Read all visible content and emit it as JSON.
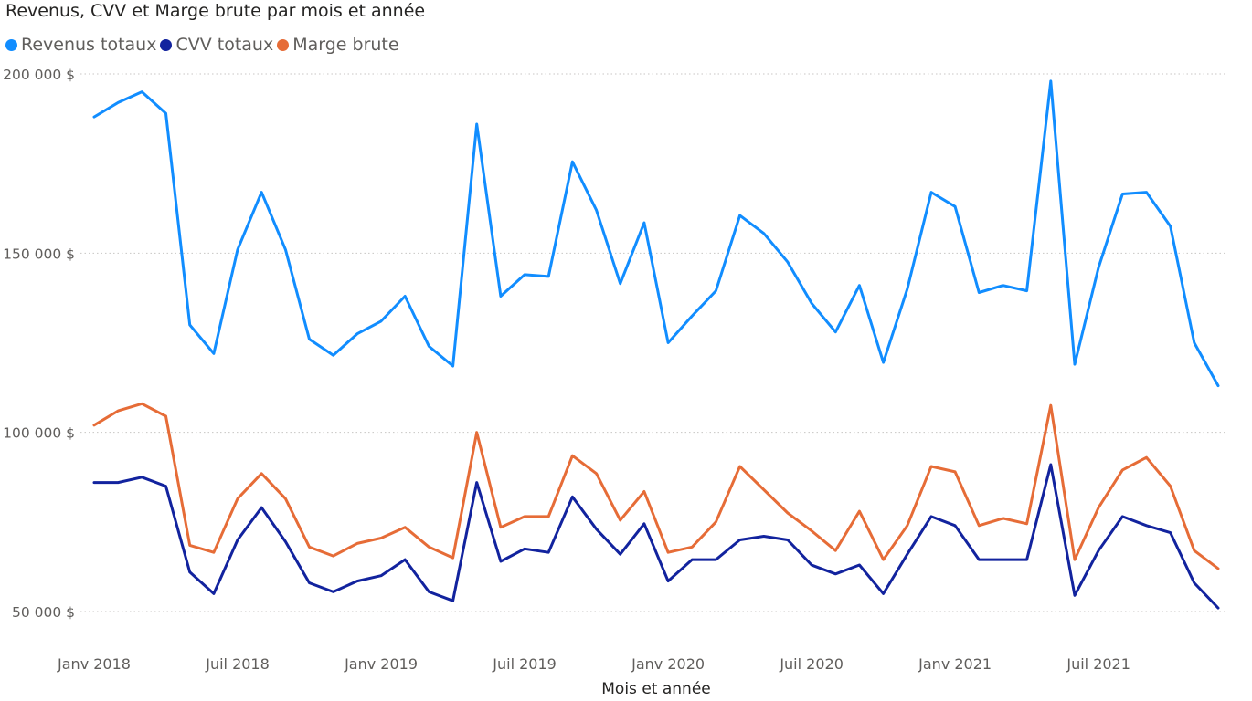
{
  "colors": {
    "revenus": "#118DFF",
    "cvv": "#12239E",
    "marge": "#E66C37",
    "grid": "#c8c6c4"
  },
  "chart_data": {
    "type": "line",
    "title": "Revenus, CVV et Marge brute par mois et année",
    "xlabel": "Mois et année",
    "ylabel": "",
    "ylim": [
      40000,
      205000
    ],
    "y_ticks": [
      "50 000 $",
      "100 000 $",
      "150 000 $",
      "200 000 $"
    ],
    "y_tick_values": [
      50000,
      100000,
      150000,
      200000
    ],
    "grid": true,
    "legend": "top-left",
    "x_tick_labels": [
      "Janv 2018",
      "Juil 2018",
      "Janv 2019",
      "Juil 2019",
      "Janv 2020",
      "Juil 2020",
      "Janv 2021",
      "Juil 2021"
    ],
    "x_tick_indices": [
      0,
      6,
      12,
      18,
      24,
      30,
      36,
      42
    ],
    "x": [
      "2018-01",
      "2018-02",
      "2018-03",
      "2018-04",
      "2018-05",
      "2018-06",
      "2018-07",
      "2018-08",
      "2018-09",
      "2018-10",
      "2018-11",
      "2018-12",
      "2019-01",
      "2019-02",
      "2019-03",
      "2019-04",
      "2019-05",
      "2019-06",
      "2019-07",
      "2019-08",
      "2019-09",
      "2019-10",
      "2019-11",
      "2019-12",
      "2020-01",
      "2020-02",
      "2020-03",
      "2020-04",
      "2020-05",
      "2020-06",
      "2020-07",
      "2020-08",
      "2020-09",
      "2020-10",
      "2020-11",
      "2020-12",
      "2021-01",
      "2021-02",
      "2021-03",
      "2021-04",
      "2021-05",
      "2021-06",
      "2021-07",
      "2021-08",
      "2021-09",
      "2021-10",
      "2021-11",
      "2021-12"
    ],
    "series": [
      {
        "name": "Revenus totaux",
        "color": "#118DFF",
        "values": [
          188000,
          192000,
          195000,
          189000,
          130000,
          122000,
          151000,
          167000,
          151000,
          126000,
          121500,
          127500,
          131000,
          138000,
          124000,
          118500,
          186000,
          138000,
          144000,
          143500,
          175500,
          162000,
          141500,
          158500,
          125000,
          132500,
          139500,
          160500,
          155500,
          147500,
          136000,
          128000,
          141000,
          119500,
          140000,
          167000,
          163000,
          139000,
          141000,
          139500,
          198000,
          119000,
          146000,
          166500,
          167000,
          157500,
          125000,
          113000
        ]
      },
      {
        "name": "CVV totaux",
        "color": "#12239E",
        "values": [
          86000,
          86000,
          87500,
          85000,
          61000,
          55000,
          70000,
          79000,
          69500,
          58000,
          55500,
          58500,
          60000,
          64500,
          55500,
          53000,
          86000,
          64000,
          67500,
          66500,
          82000,
          73000,
          66000,
          74500,
          58500,
          64500,
          64500,
          70000,
          71000,
          70000,
          63000,
          60500,
          63000,
          55000,
          66000,
          76500,
          74000,
          64500,
          64500,
          64500,
          91000,
          54500,
          67000,
          76500,
          74000,
          72000,
          58000,
          51000
        ]
      },
      {
        "name": "Marge brute",
        "color": "#E66C37",
        "values": [
          102000,
          106000,
          108000,
          104500,
          68500,
          66500,
          81500,
          88500,
          81500,
          68000,
          65500,
          69000,
          70500,
          73500,
          68000,
          65000,
          100000,
          73500,
          76500,
          76500,
          93500,
          88500,
          75500,
          83500,
          66500,
          68000,
          75000,
          90500,
          84000,
          77500,
          72500,
          67000,
          78000,
          64500,
          74000,
          90500,
          89000,
          74000,
          76000,
          74500,
          107500,
          64500,
          79000,
          89500,
          93000,
          85000,
          67000,
          62000
        ]
      }
    ]
  }
}
